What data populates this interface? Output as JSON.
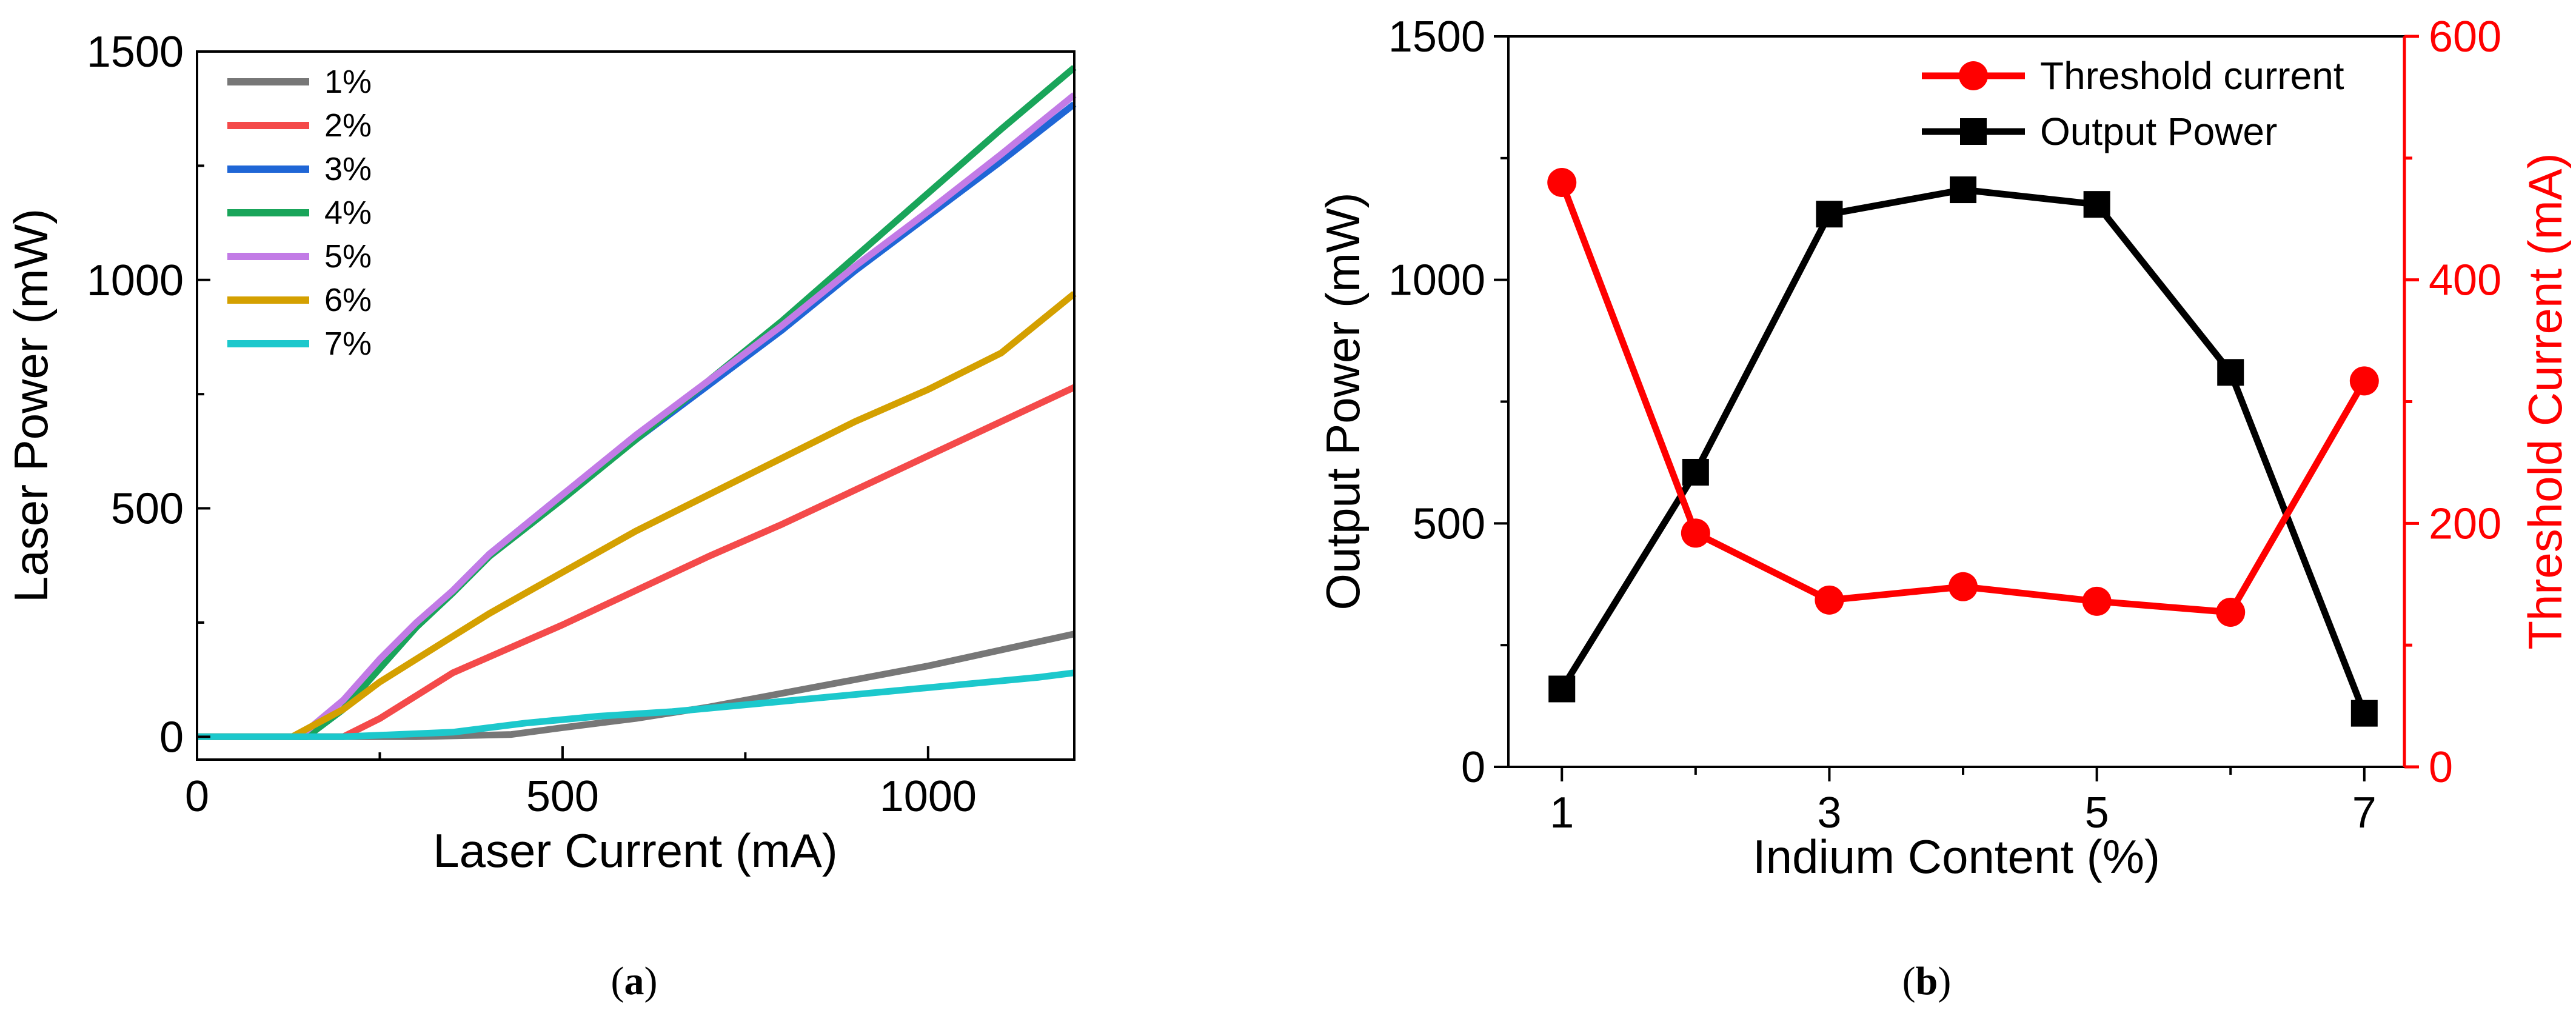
{
  "chart_data": [
    {
      "id": "a",
      "type": "line",
      "panel_label_open": "(",
      "panel_label": "a",
      "panel_label_close": ")",
      "xlabel": "Laser Current (mA)",
      "ylabel": "Laser Power (mW)",
      "xlim": [
        0,
        1200
      ],
      "ylim": [
        -50,
        1500
      ],
      "xticks": [
        0,
        500,
        1000
      ],
      "yticks": [
        0,
        500,
        1000,
        1500
      ],
      "legend_position": "top-left",
      "series": [
        {
          "name": "1%",
          "color": "#777777",
          "x": [
            0,
            300,
            430,
            500,
            600,
            700,
            800,
            900,
            1000,
            1100,
            1200
          ],
          "y": [
            0,
            0,
            5,
            20,
            40,
            65,
            95,
            125,
            155,
            190,
            225
          ]
        },
        {
          "name": "2%",
          "color": "#F44A4A",
          "x": [
            0,
            200,
            250,
            300,
            350,
            400,
            500,
            600,
            700,
            800,
            900,
            1000,
            1100,
            1200
          ],
          "y": [
            0,
            0,
            40,
            90,
            140,
            175,
            245,
            320,
            395,
            465,
            540,
            615,
            690,
            765
          ]
        },
        {
          "name": "3%",
          "color": "#1F66D6",
          "x": [
            0,
            150,
            200,
            250,
            300,
            350,
            400,
            500,
            600,
            700,
            800,
            900,
            1000,
            1100,
            1200
          ],
          "y": [
            0,
            0,
            60,
            150,
            240,
            320,
            400,
            530,
            650,
            770,
            890,
            1020,
            1140,
            1260,
            1385
          ]
        },
        {
          "name": "4%",
          "color": "#19A55A",
          "x": [
            0,
            150,
            200,
            250,
            300,
            350,
            400,
            500,
            600,
            700,
            800,
            900,
            1000,
            1100,
            1200
          ],
          "y": [
            0,
            0,
            60,
            150,
            240,
            315,
            395,
            520,
            650,
            780,
            910,
            1050,
            1190,
            1330,
            1465
          ]
        },
        {
          "name": "5%",
          "color": "#C27BE6",
          "x": [
            0,
            140,
            200,
            250,
            300,
            350,
            400,
            500,
            600,
            700,
            800,
            900,
            1000,
            1100,
            1200
          ],
          "y": [
            0,
            0,
            80,
            170,
            250,
            320,
            400,
            530,
            660,
            780,
            900,
            1030,
            1150,
            1275,
            1405
          ]
        },
        {
          "name": "6%",
          "color": "#D4A000",
          "x": [
            0,
            130,
            200,
            250,
            300,
            350,
            400,
            500,
            600,
            700,
            800,
            900,
            1000,
            1100,
            1200
          ],
          "y": [
            0,
            0,
            60,
            120,
            170,
            220,
            270,
            360,
            450,
            530,
            610,
            690,
            760,
            840,
            970
          ]
        },
        {
          "name": "7%",
          "color": "#1CC8CC",
          "x": [
            0,
            200,
            350,
            450,
            550,
            650,
            750,
            850,
            950,
            1050,
            1150,
            1200
          ],
          "y": [
            0,
            0,
            10,
            30,
            45,
            55,
            70,
            85,
            100,
            115,
            130,
            140
          ]
        }
      ]
    },
    {
      "id": "b",
      "type": "line",
      "panel_label_open": "(",
      "panel_label": "b",
      "panel_label_close": ")",
      "xlabel": "Indium Content (%)",
      "ylabel": "Output Power (mW)",
      "ylabel_right": "Threshold Current (mA)",
      "xlim": [
        0.6,
        7.3
      ],
      "ylim": [
        0,
        1500
      ],
      "ylim_right": [
        0,
        600
      ],
      "xticks": [
        1,
        3,
        5,
        7
      ],
      "yticks": [
        0,
        500,
        1000,
        1500
      ],
      "yticks_right": [
        0,
        200,
        400,
        600
      ],
      "legend_position": "top-right",
      "series": [
        {
          "name": "Threshold current",
          "axis": "right",
          "marker": "circle",
          "color": "#FF0000",
          "x": [
            1,
            2,
            3,
            4,
            5,
            6,
            7
          ],
          "y": [
            480,
            192,
            137,
            148,
            136,
            127,
            317
          ]
        },
        {
          "name": "Output Power",
          "axis": "left",
          "marker": "square",
          "color": "#000000",
          "x": [
            1,
            2,
            3,
            4,
            5,
            6,
            7
          ],
          "y": [
            160,
            605,
            1135,
            1185,
            1155,
            810,
            110
          ]
        }
      ]
    }
  ]
}
